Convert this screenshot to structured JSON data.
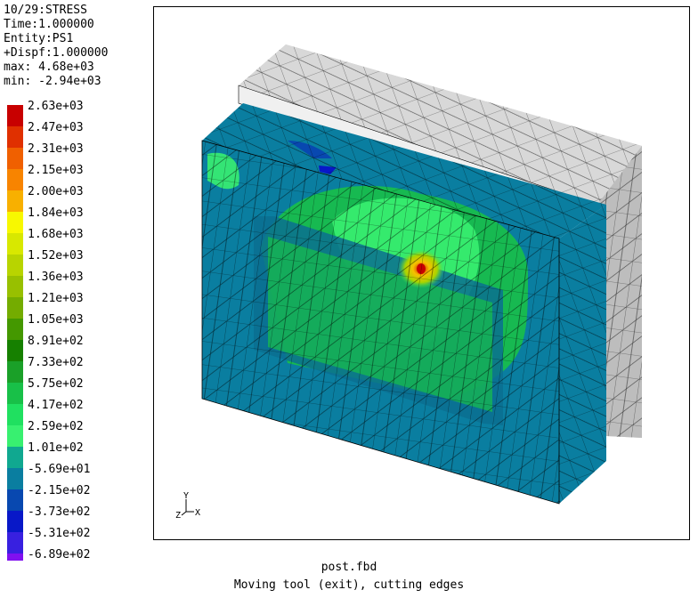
{
  "header": {
    "line1": "10/29:STRESS",
    "line2": "Time:1.000000",
    "line3": "Entity:PS1",
    "line4": "+Dispf:1.000000",
    "line5": "max: 4.68e+03",
    "line6": "min: -2.94e+03"
  },
  "legend": [
    {
      "label": "2.63e+03",
      "color": "#c80000"
    },
    {
      "label": "2.47e+03",
      "color": "#e03000"
    },
    {
      "label": "2.31e+03",
      "color": "#f06000"
    },
    {
      "label": "2.15e+03",
      "color": "#f88400"
    },
    {
      "label": "2.00e+03",
      "color": "#f8b000"
    },
    {
      "label": "1.84e+03",
      "color": "#f8f800"
    },
    {
      "label": "1.68e+03",
      "color": "#d8e800"
    },
    {
      "label": "1.52e+03",
      "color": "#b8d400"
    },
    {
      "label": "1.36e+03",
      "color": "#98c000"
    },
    {
      "label": "1.21e+03",
      "color": "#74ac00"
    },
    {
      "label": "1.05e+03",
      "color": "#449800"
    },
    {
      "label": "8.91e+02",
      "color": "#168000"
    },
    {
      "label": "7.33e+02",
      "color": "#1aa028"
    },
    {
      "label": "5.75e+02",
      "color": "#18c048"
    },
    {
      "label": "4.17e+02",
      "color": "#20e060"
    },
    {
      "label": "2.59e+02",
      "color": "#38f070"
    },
    {
      "label": "1.01e+02",
      "color": "#10a890"
    },
    {
      "label": "-5.69e+01",
      "color": "#0a7ea0"
    },
    {
      "label": "-2.15e+02",
      "color": "#0848b0"
    },
    {
      "label": "-3.73e+02",
      "color": "#0818c8"
    },
    {
      "label": "-5.31e+02",
      "color": "#3820e0"
    },
    {
      "label": "-6.89e+02",
      "color": "#8010f0"
    }
  ],
  "axes": {
    "y": "Y",
    "x": "X",
    "z": "Z"
  },
  "caption": {
    "line1": "post.fbd",
    "line2": "Moving tool (exit), cutting edges"
  }
}
